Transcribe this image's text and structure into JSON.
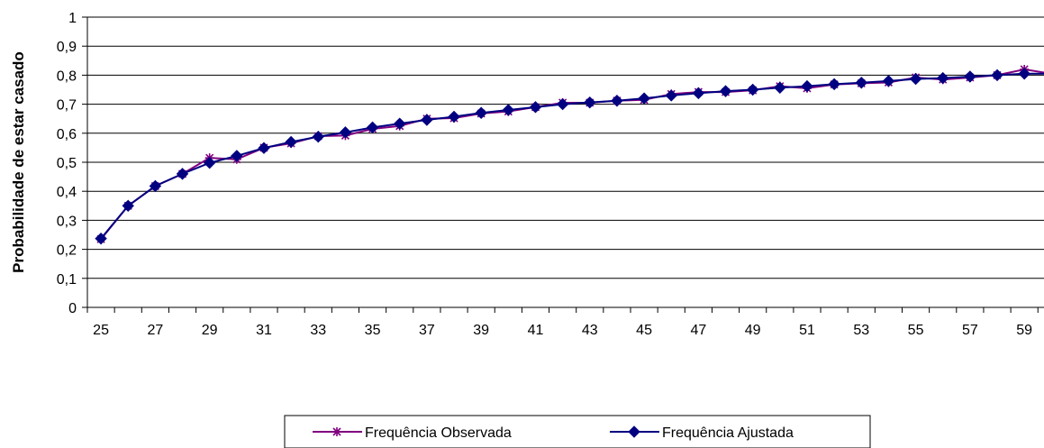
{
  "chart_data": {
    "type": "line",
    "title": "",
    "xlabel": "",
    "ylabel": "Probabilidade de estar casado",
    "ylim": [
      0,
      1
    ],
    "yticks": [
      "0",
      "0,1",
      "0,2",
      "0,3",
      "0,4",
      "0,5",
      "0,6",
      "0,7",
      "0,8",
      "0,9",
      "1"
    ],
    "xtick_labels": [
      "25",
      "27",
      "29",
      "31",
      "33",
      "35",
      "37",
      "39",
      "41",
      "43",
      "45",
      "47",
      "49",
      "51",
      "53",
      "55",
      "57",
      "59"
    ],
    "x": [
      25,
      26,
      27,
      28,
      29,
      30,
      31,
      32,
      33,
      34,
      35,
      36,
      37,
      38,
      39,
      40,
      41,
      42,
      43,
      44,
      45,
      46,
      47,
      48,
      49,
      50,
      51,
      52,
      53,
      54,
      55,
      56,
      57,
      58,
      59,
      60
    ],
    "grid": "horizontal",
    "legend_position": "bottom",
    "series": [
      {
        "name": "Frequência Observada",
        "color": "#800080",
        "marker": "asterisk",
        "values": [
          0.235,
          0.35,
          0.418,
          0.46,
          0.515,
          0.51,
          0.55,
          0.565,
          0.59,
          0.592,
          0.615,
          0.625,
          0.65,
          0.652,
          0.668,
          0.675,
          0.69,
          0.705,
          0.705,
          0.712,
          0.715,
          0.735,
          0.742,
          0.742,
          0.748,
          0.762,
          0.755,
          0.768,
          0.772,
          0.775,
          0.792,
          0.785,
          0.792,
          0.8,
          0.82,
          0.805
        ]
      },
      {
        "name": "Frequência Ajustada",
        "color": "#000080",
        "marker": "diamond",
        "values": [
          0.237,
          0.35,
          0.418,
          0.46,
          0.498,
          0.522,
          0.549,
          0.57,
          0.588,
          0.603,
          0.62,
          0.633,
          0.646,
          0.657,
          0.67,
          0.68,
          0.69,
          0.7,
          0.706,
          0.712,
          0.72,
          0.73,
          0.738,
          0.745,
          0.75,
          0.757,
          0.762,
          0.769,
          0.774,
          0.78,
          0.787,
          0.79,
          0.795,
          0.8,
          0.805,
          0.805
        ]
      }
    ]
  }
}
